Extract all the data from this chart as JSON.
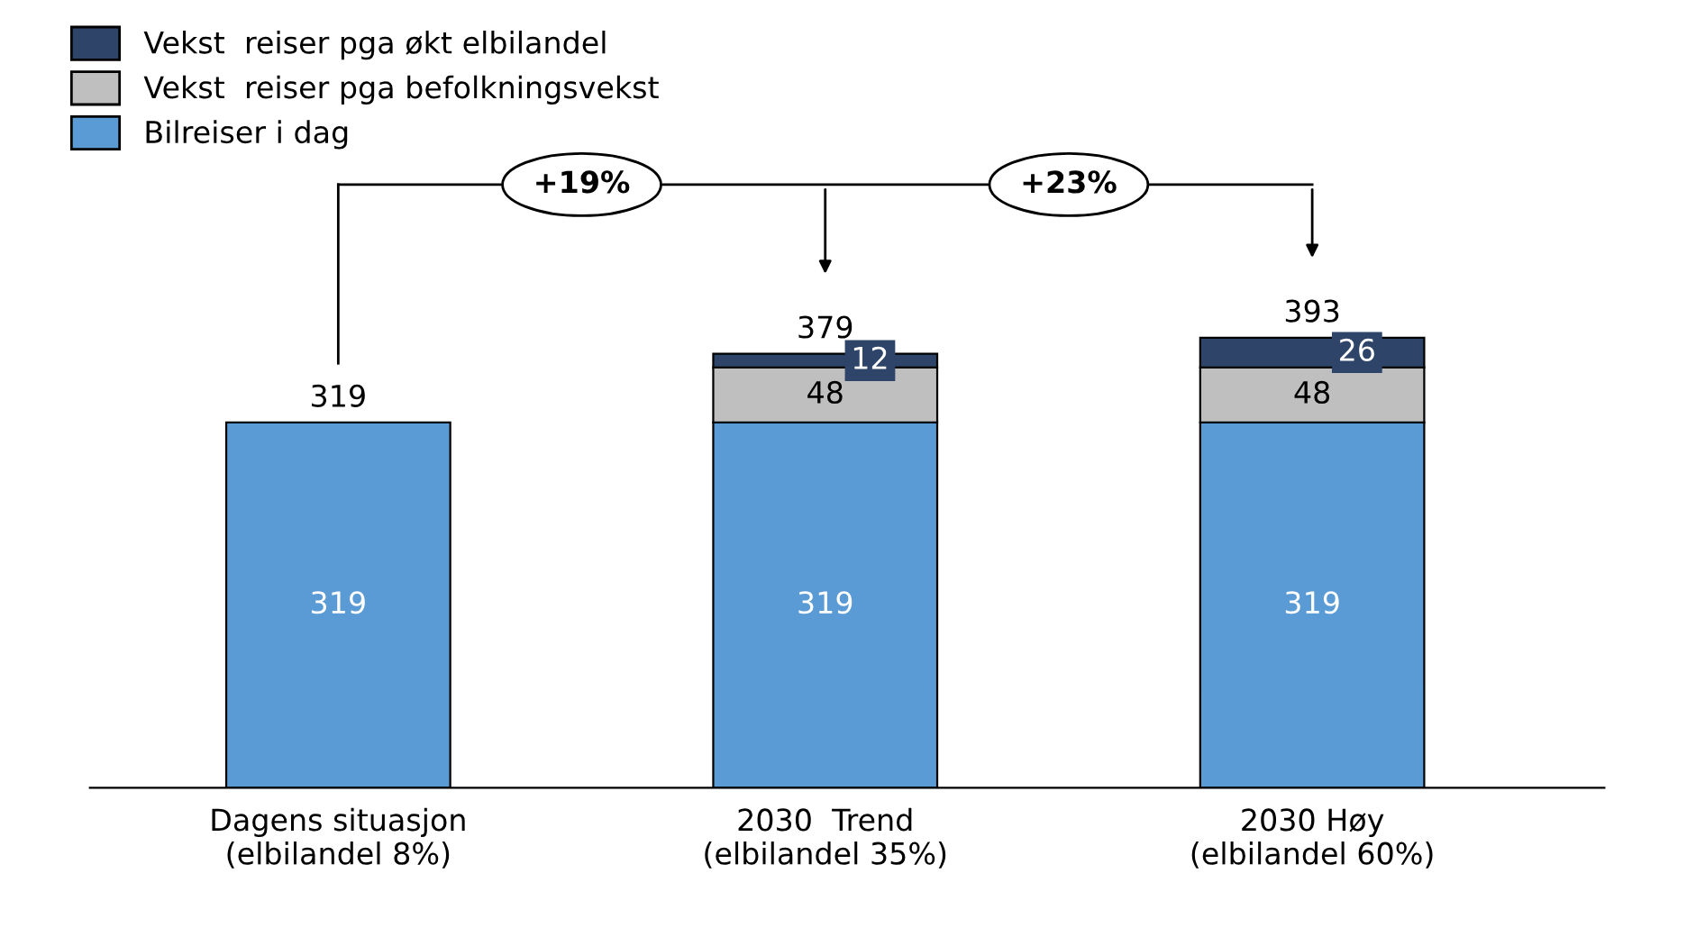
{
  "chart_data": {
    "type": "bar",
    "stacked": true,
    "categories": [
      "Dagens situasjon\n(elbilandel 8%)",
      "2030  Trend\n(elbilandel 35%)",
      "2030 Høy\n(elbilandel 60%)"
    ],
    "series": [
      {
        "name": "Bilreiser i dag",
        "color": "#5b9bd5",
        "values": [
          319,
          319,
          319
        ]
      },
      {
        "name": "Vekst  reiser pga befolkningsvekst",
        "color": "#bfbfbf",
        "values": [
          null,
          48,
          48
        ]
      },
      {
        "name": "Vekst  reiser pga økt elbilandel",
        "color": "#2e4468",
        "values": [
          null,
          12,
          26
        ]
      }
    ],
    "data_labels": true,
    "totals": [
      "319",
      "379",
      "393"
    ],
    "annotations": [
      "+19%",
      "+23%"
    ],
    "legend": "top left",
    "grid": false
  }
}
